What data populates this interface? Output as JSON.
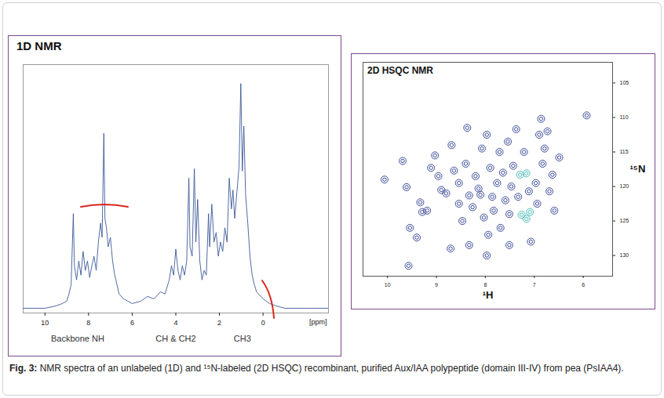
{
  "chart_data": [
    {
      "type": "line",
      "title": "1D NMR",
      "x": [
        11.0,
        10.0,
        9.5,
        9.2,
        9.0,
        8.9,
        8.8,
        8.7,
        8.65,
        8.55,
        8.45,
        8.35,
        8.25,
        8.15,
        8.05,
        7.95,
        7.85,
        7.75,
        7.65,
        7.55,
        7.45,
        7.38,
        7.3,
        7.25,
        7.18,
        7.1,
        7.0,
        6.9,
        6.8,
        6.7,
        6.6,
        6.4,
        6.2,
        6.0,
        5.6,
        5.3,
        5.0,
        4.7,
        4.5,
        4.3,
        4.2,
        4.1,
        4.0,
        3.9,
        3.8,
        3.7,
        3.6,
        3.5,
        3.4,
        3.35,
        3.25,
        3.15,
        3.08,
        3.0,
        2.9,
        2.8,
        2.7,
        2.6,
        2.5,
        2.45,
        2.35,
        2.25,
        2.15,
        2.05,
        1.95,
        1.85,
        1.75,
        1.65,
        1.55,
        1.45,
        1.38,
        1.3,
        1.2,
        1.1,
        1.02,
        0.95,
        0.88,
        0.8,
        0.7,
        0.6,
        0.5,
        0.4,
        0.3,
        0.2,
        0.0,
        -0.3,
        -0.6,
        -1.0,
        -2.0,
        -3.0
      ],
      "values": [
        2,
        2,
        3,
        4,
        5,
        8,
        12,
        42,
        20,
        14,
        22,
        16,
        26,
        18,
        22,
        15,
        20,
        24,
        18,
        30,
        38,
        32,
        76,
        40,
        36,
        28,
        32,
        22,
        16,
        12,
        8,
        6,
        5,
        4,
        5,
        7,
        6,
        9,
        8,
        14,
        20,
        16,
        27,
        18,
        14,
        20,
        16,
        22,
        57,
        28,
        24,
        61,
        30,
        48,
        22,
        14,
        18,
        16,
        42,
        28,
        46,
        30,
        34,
        24,
        30,
        26,
        36,
        30,
        57,
        44,
        52,
        40,
        51,
        62,
        97,
        60,
        79,
        50,
        38,
        24,
        16,
        12,
        9,
        8,
        6,
        4,
        3,
        2,
        2,
        2
      ],
      "color": "#3d5a99",
      "xlim": [
        11,
        -3
      ],
      "xticks": [
        10,
        8,
        6,
        4,
        2,
        0
      ],
      "ylim": [
        0,
        105
      ],
      "xlabel": "[ppm]",
      "tick_labels": "x",
      "annotations": [
        {
          "text": "Backbone NH",
          "x": 8.5
        },
        {
          "text": "CH & CH2",
          "x": 4.0
        },
        {
          "text": "CH3",
          "x": 0.95
        }
      ]
    },
    {
      "type": "scatter",
      "title": "2D HSQC NMR",
      "marker": "contour",
      "x": [
        10.06,
        9.61,
        9.54,
        9.29,
        9.57,
        9.33,
        9.11,
        9.03,
        8.96,
        8.9,
        8.8,
        8.69,
        8.64,
        8.54,
        8.54,
        8.47,
        8.4,
        8.37,
        8.33,
        8.26,
        8.2,
        8.14,
        8.07,
        8.03,
        7.97,
        7.94,
        7.9,
        7.86,
        7.83,
        7.76,
        7.71,
        7.69,
        7.64,
        7.59,
        7.54,
        7.51,
        7.47,
        7.43,
        7.37,
        7.33,
        7.21,
        7.11,
        7.07,
        6.97,
        6.94,
        6.9,
        6.86,
        6.83,
        6.79,
        6.73,
        6.69,
        6.63,
        6.59,
        6.49,
        5.93,
        9.4,
        8.71,
        8.33,
        7.97,
        7.51,
        9.69,
        9.19,
        8.1,
        7.26,
        7.16,
        7.09,
        7.29,
        7.16
      ],
      "y": [
        119.0,
        120.1,
        126.0,
        123.7,
        131.5,
        122.3,
        117.3,
        115.5,
        118.5,
        120.5,
        121.0,
        114.0,
        117.7,
        119.5,
        122.5,
        125.0,
        116.7,
        111.5,
        121.3,
        123.0,
        118.5,
        120.3,
        114.5,
        124.5,
        112.5,
        127.0,
        117.3,
        121.5,
        123.5,
        119.5,
        115.0,
        126.0,
        118.0,
        122.0,
        113.5,
        124.0,
        120.0,
        117.0,
        111.7,
        121.5,
        115.0,
        120.7,
        128.0,
        119.5,
        122.5,
        112.5,
        110.2,
        116.7,
        114.5,
        112.0,
        120.7,
        118.3,
        123.5,
        115.8,
        109.7,
        127.4,
        129.0,
        128.5,
        130.0,
        128.5,
        116.3,
        123.5,
        121.2,
        124.1,
        124.7,
        123.7,
        118.3,
        118.1
      ],
      "colors": [
        "#2a3a8f",
        "#2a3a8f",
        "#2a3a8f",
        "#2a3a8f",
        "#2a3a8f",
        "#2a3a8f",
        "#2a3a8f",
        "#2a3a8f",
        "#2a3a8f",
        "#2a3a8f",
        "#2a3a8f",
        "#2a3a8f",
        "#2a3a8f",
        "#2a3a8f",
        "#2a3a8f",
        "#2a3a8f",
        "#2a3a8f",
        "#2a3a8f",
        "#2a3a8f",
        "#2a3a8f",
        "#2a3a8f",
        "#2a3a8f",
        "#2a3a8f",
        "#2a3a8f",
        "#2a3a8f",
        "#2a3a8f",
        "#2a3a8f",
        "#2a3a8f",
        "#2a3a8f",
        "#2a3a8f",
        "#2a3a8f",
        "#2a3a8f",
        "#2a3a8f",
        "#2a3a8f",
        "#2a3a8f",
        "#2a3a8f",
        "#2a3a8f",
        "#2a3a8f",
        "#2a3a8f",
        "#2a3a8f",
        "#2a3a8f",
        "#2a3a8f",
        "#2a3a8f",
        "#2a3a8f",
        "#2a3a8f",
        "#2a3a8f",
        "#2a3a8f",
        "#2a3a8f",
        "#2a3a8f",
        "#2a3a8f",
        "#2a3a8f",
        "#2a3a8f",
        "#2a3a8f",
        "#2a3a8f",
        "#2a3a8f",
        "#2a3a8f",
        "#2a3a8f",
        "#2a3a8f",
        "#2a3a8f",
        "#2a3a8f",
        "#2a3a8f",
        "#2a3a8f",
        "#2a3a8f",
        "#3ab5b0",
        "#3ab5b0",
        "#3ab5b0",
        "#3ab5b0",
        "#3ab5b0"
      ],
      "xlim": [
        10.5,
        5.4
      ],
      "xticks": [
        10,
        9,
        8,
        7,
        6
      ],
      "ylim": [
        133,
        102
      ],
      "yticks": [
        105,
        110,
        115,
        120,
        125,
        130
      ],
      "xlabel": "¹H",
      "ylabel": "¹⁵N"
    }
  ],
  "caption": {
    "label": "Fig. 3:",
    "text": "NMR spectra of an unlabeled (1D) and ¹⁵N-labeled (2D HSQC) recombinant, purified Aux/IAA polypeptide (domain III-IV) from pea (PsIAA4)."
  }
}
